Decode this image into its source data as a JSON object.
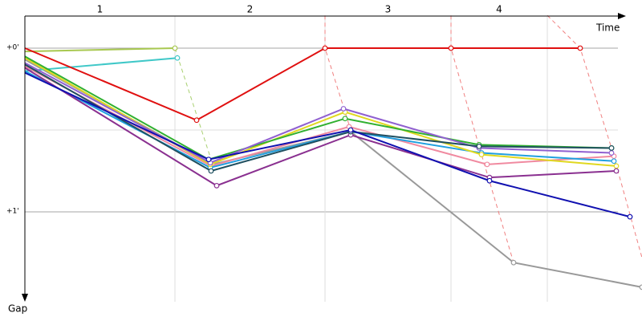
{
  "chart_data": {
    "type": "line",
    "x_label": "Time",
    "y_label": "Gap",
    "xlim": [
      0,
      769
    ],
    "ylim": [
      -0.2,
      1.55
    ],
    "yticks": [
      {
        "value": 0,
        "label": "+0'"
      },
      {
        "value": 1,
        "label": "+1'"
      }
    ],
    "ygrid_minor": [
      0.5
    ],
    "laps": {
      "labels": [
        "1",
        "2",
        "3",
        "4"
      ],
      "boundaries": [
        0,
        187,
        374,
        531,
        651
      ]
    },
    "lap_lines": [
      {
        "color": "#a8d070",
        "x": [
          187,
          234
        ],
        "y": [
          0,
          0.71
        ]
      },
      {
        "color": "#f08080",
        "x": [
          374,
          374,
          406
        ],
        "y": [
          -0.2,
          0,
          0.5
        ]
      },
      {
        "color": "#f08080",
        "x": [
          531,
          531,
          566,
          609
        ],
        "y": [
          -0.2,
          0,
          0.6,
          1.31
        ]
      },
      {
        "color": "#f08080",
        "x": [
          651,
          692,
          731,
          769
        ],
        "y": [
          -0.2,
          0,
          0.61,
          1.28
        ]
      }
    ],
    "series": [
      {
        "color": "#999999",
        "x": [
          0,
          234,
          406,
          609,
          769
        ],
        "y": [
          0.07,
          0.71,
          0.51,
          1.31,
          1.46
        ]
      },
      {
        "color": "#a8c850",
        "x": [
          0,
          187
        ],
        "y": [
          0.02,
          0
        ]
      },
      {
        "color": "#40c8c8",
        "x": [
          0,
          190
        ],
        "y": [
          0.14,
          0.06
        ]
      },
      {
        "color": "#f08aa0",
        "x": [
          0,
          232,
          404,
          576,
          734
        ],
        "y": [
          0.11,
          0.72,
          0.48,
          0.71,
          0.66
        ]
      },
      {
        "color": "#20a0e0",
        "x": [
          0,
          231,
          406,
          569,
          734
        ],
        "y": [
          0.14,
          0.73,
          0.51,
          0.64,
          0.69
        ]
      },
      {
        "color": "#e0d820",
        "x": [
          0,
          231,
          399,
          569,
          737
        ],
        "y": [
          0.06,
          0.71,
          0.39,
          0.65,
          0.72
        ]
      },
      {
        "color": "#30b030",
        "x": [
          0,
          229,
          399,
          566,
          731
        ],
        "y": [
          0.05,
          0.68,
          0.43,
          0.59,
          0.61
        ]
      },
      {
        "color": "#9060d0",
        "x": [
          0,
          231,
          397,
          566,
          731
        ],
        "y": [
          0.09,
          0.7,
          0.37,
          0.61,
          0.64
        ]
      },
      {
        "color": "#8a3090",
        "x": [
          0,
          239,
          406,
          579,
          737
        ],
        "y": [
          0.12,
          0.84,
          0.53,
          0.79,
          0.75
        ]
      },
      {
        "color": "#205060",
        "x": [
          0,
          232,
          406,
          566,
          731
        ],
        "y": [
          0.1,
          0.75,
          0.51,
          0.6,
          0.61
        ]
      },
      {
        "color": "#1010b0",
        "x": [
          0,
          229,
          406,
          579,
          754
        ],
        "y": [
          0.15,
          0.68,
          0.5,
          0.81,
          1.03
        ]
      },
      {
        "color": "#e01010",
        "x": [
          0,
          214,
          374,
          531,
          692
        ],
        "y": [
          0,
          0.44,
          0,
          0,
          0
        ]
      }
    ]
  }
}
